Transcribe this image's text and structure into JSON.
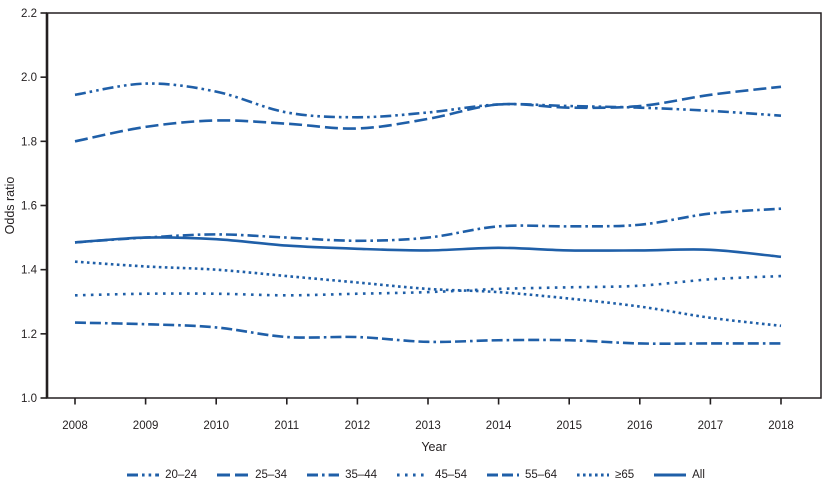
{
  "figure": {
    "background": "#ffffff",
    "text_color": "#231f20",
    "frame_color": "#231f20",
    "line_color": "#1f5fa8"
  },
  "chart_data": {
    "type": "line",
    "title": "",
    "xlabel": "Year",
    "ylabel": "Odds ratio",
    "x": [
      2008,
      2009,
      2010,
      2011,
      2012,
      2013,
      2014,
      2015,
      2016,
      2017,
      2018
    ],
    "ylim": [
      1.0,
      2.2
    ],
    "yticks": [
      "1.0",
      "1.2",
      "1.4",
      "1.6",
      "1.8",
      "2.0",
      "2.2"
    ],
    "grid": false,
    "legend_position": "bottom",
    "series": [
      {
        "name": "20–24",
        "dash": "dash-dot-dot",
        "values": [
          1.945,
          1.98,
          1.955,
          1.89,
          1.875,
          1.89,
          1.915,
          1.91,
          1.905,
          1.895,
          1.88
        ]
      },
      {
        "name": "25–34",
        "dash": "long-dash",
        "values": [
          1.8,
          1.845,
          1.865,
          1.855,
          1.84,
          1.87,
          1.915,
          1.905,
          1.91,
          1.945,
          1.97
        ]
      },
      {
        "name": "35–44",
        "dash": "dash-dot",
        "values": [
          1.485,
          1.5,
          1.51,
          1.5,
          1.49,
          1.5,
          1.535,
          1.535,
          1.54,
          1.575,
          1.59
        ]
      },
      {
        "name": "45–54",
        "dash": "sparse-dot",
        "values": [
          1.32,
          1.325,
          1.325,
          1.32,
          1.325,
          1.33,
          1.34,
          1.345,
          1.35,
          1.37,
          1.38
        ]
      },
      {
        "name": "55–64",
        "dash": "dash-dash-dot",
        "values": [
          1.235,
          1.23,
          1.22,
          1.19,
          1.19,
          1.175,
          1.18,
          1.18,
          1.17,
          1.17,
          1.17
        ]
      },
      {
        "name": "≥65",
        "dash": "dot",
        "values": [
          1.425,
          1.41,
          1.4,
          1.38,
          1.36,
          1.34,
          1.33,
          1.31,
          1.285,
          1.25,
          1.225
        ]
      },
      {
        "name": "All",
        "dash": "solid",
        "values": [
          1.485,
          1.5,
          1.495,
          1.475,
          1.465,
          1.46,
          1.468,
          1.46,
          1.46,
          1.462,
          1.44
        ]
      }
    ]
  }
}
